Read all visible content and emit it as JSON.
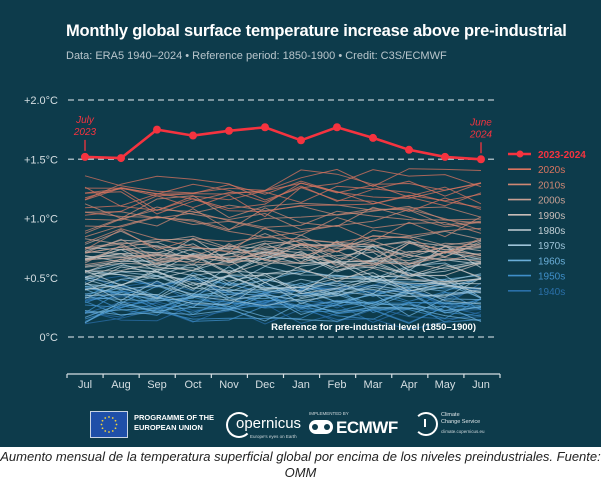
{
  "chart_data": {
    "type": "line",
    "title": "Monthly global surface temperature increase above pre-industrial",
    "subtitle": "Data: ERA5 1940–2024 • Reference period: 1850-1900 • Credit: C3S/ECMWF",
    "xlabel": "",
    "ylabel": "",
    "categories": [
      "Jul",
      "Aug",
      "Sep",
      "Oct",
      "Nov",
      "Dec",
      "Jan",
      "Feb",
      "Mar",
      "Apr",
      "May",
      "Jun"
    ],
    "ylim": [
      -0.3,
      2.0
    ],
    "yticks": [
      {
        "value": 2.0,
        "label": "+2.0°C",
        "dashed": true
      },
      {
        "value": 1.5,
        "label": "+1.5°C",
        "dashed": true
      },
      {
        "value": 1.0,
        "label": "+1.0°C",
        "dashed": false
      },
      {
        "value": 0.5,
        "label": "+0.5°C",
        "dashed": false
      },
      {
        "value": 0.0,
        "label": "0°C",
        "dashed": true
      }
    ],
    "highlight_series": {
      "name": "2023-2024",
      "color": "#f5333f",
      "values": [
        1.52,
        1.51,
        1.75,
        1.7,
        1.74,
        1.77,
        1.66,
        1.77,
        1.68,
        1.58,
        1.52,
        1.5
      ]
    },
    "decade_series": [
      {
        "name": "2020s",
        "color": "#d9745f",
        "center": 1.22,
        "spread": 0.13
      },
      {
        "name": "2010s",
        "color": "#cf8874",
        "center": 0.95,
        "spread": 0.16
      },
      {
        "name": "2000s",
        "color": "#c7a094",
        "center": 0.78,
        "spread": 0.12
      },
      {
        "name": "1990s",
        "color": "#c9bdb8",
        "center": 0.65,
        "spread": 0.12
      },
      {
        "name": "1980s",
        "color": "#c3d0d6",
        "center": 0.55,
        "spread": 0.12
      },
      {
        "name": "1970s",
        "color": "#9ec4d8",
        "center": 0.42,
        "spread": 0.12
      },
      {
        "name": "1960s",
        "color": "#6aaed8",
        "center": 0.33,
        "spread": 0.12
      },
      {
        "name": "1950s",
        "color": "#3f8fc9",
        "center": 0.28,
        "spread": 0.13
      },
      {
        "name": "1940s",
        "color": "#2a6fa8",
        "center": 0.3,
        "spread": 0.16
      }
    ],
    "legend_position": "right",
    "annotations": [
      {
        "text_line1": "July",
        "text_line2": "2023",
        "at": "Jul"
      },
      {
        "text_line1": "June",
        "text_line2": "2024",
        "at": "Jun"
      },
      {
        "text": "Reference for pre-industrial level (1850–1900)"
      }
    ],
    "grid": false
  },
  "logos": {
    "eu": "PROGRAMME OF THE\nEUROPEAN UNION",
    "eu_line1": "PROGRAMME OF THE",
    "eu_line2": "EUROPEAN UNION",
    "copernicus": "opernicus",
    "copernicus_sub": "Europe's eyes on Earth",
    "ecmwf_small": "IMPLEMENTED BY",
    "ecmwf": "ECMWF",
    "c3s_line1": "Climate",
    "c3s_line2": "Change Service",
    "c3s_url": "climate.copernicus.eu"
  },
  "caption": "Aumento mensual de la temperatura superficial global por encima de los niveles preindustriales. Fuente: OMM"
}
